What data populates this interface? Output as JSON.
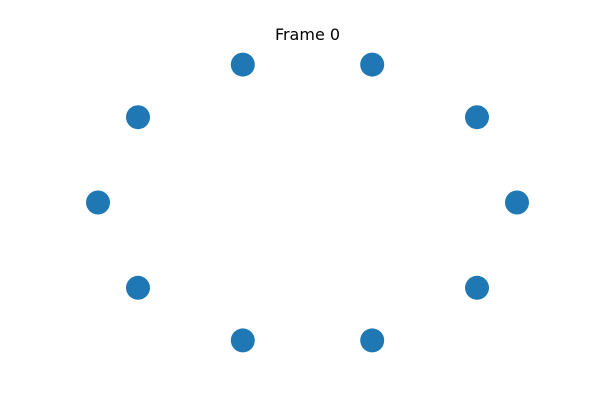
{
  "chart_data": {
    "type": "scatter",
    "title": "Frame 0",
    "xlabel": "",
    "ylabel": "",
    "axes_visible": false,
    "grid": false,
    "legend": "none",
    "xlim": [
      -1.1,
      1.1
    ],
    "ylim": [
      -1.1,
      1.1
    ],
    "marker_color": "#1f77b4",
    "series": [
      {
        "x": [
          1.0,
          0.809,
          0.309,
          -0.309,
          -0.809,
          -1.0,
          -0.809,
          -0.309,
          0.309,
          0.809
        ],
        "y": [
          0.0,
          0.588,
          0.951,
          0.951,
          0.588,
          0.0,
          -0.588,
          -0.951,
          -0.951,
          -0.588
        ]
      }
    ]
  }
}
